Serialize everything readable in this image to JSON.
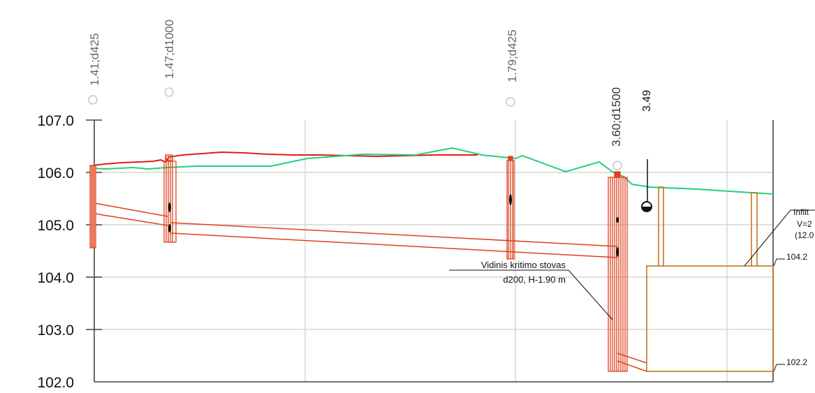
{
  "y_axis": {
    "ticks": [
      "107.0",
      "106.0",
      "105.0",
      "104.0",
      "103.0",
      "102.0"
    ]
  },
  "manholes": [
    {
      "label": "1.41;d425"
    },
    {
      "label": "1.47;d1000"
    },
    {
      "label": "1.79;d425"
    },
    {
      "label": "3.60;d1500"
    }
  ],
  "point_label": "3.49",
  "callout": {
    "line1": "Vidinis kritimo stovas",
    "line2": "d200, H-1.90 m"
  },
  "tank_labels": {
    "title_line1": "Infilt",
    "title_line2": "V=2",
    "title_line3": "(12.0",
    "top_level": "104.2",
    "bottom_level": "102.2"
  },
  "colors": {
    "ground_existing": "#e11b1b",
    "ground_design": "#22d17a",
    "pipe": "#e0421c",
    "tank": "#c8731e",
    "axis": "#444444",
    "grid": "#d6d6d6"
  }
}
